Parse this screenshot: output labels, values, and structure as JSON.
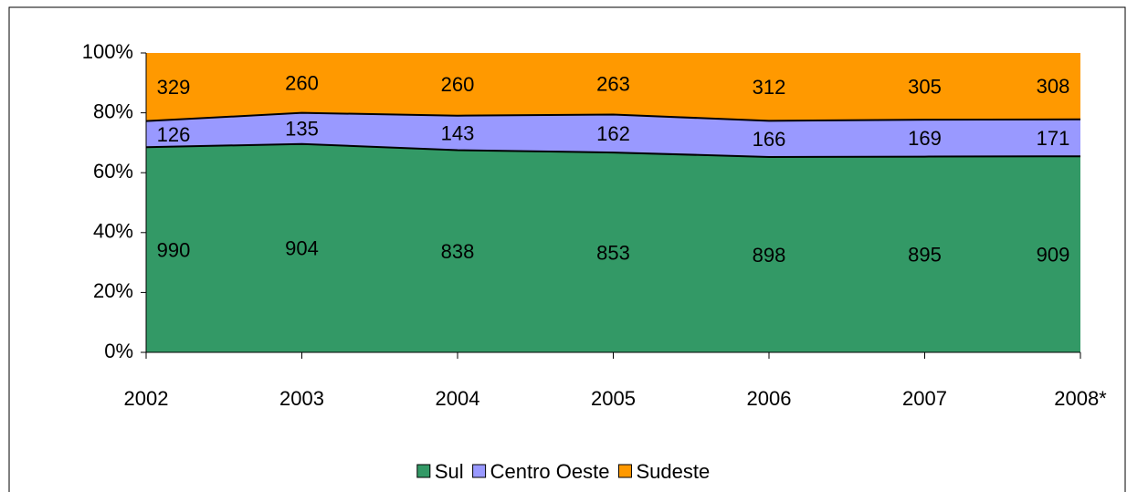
{
  "chart_data": {
    "type": "area",
    "stacked": "percent",
    "categories": [
      "2002",
      "2003",
      "2004",
      "2005",
      "2006",
      "2007",
      "2008*"
    ],
    "series": [
      {
        "name": "Sul",
        "color": "#339966",
        "values": [
          990,
          904,
          838,
          853,
          898,
          895,
          909
        ]
      },
      {
        "name": "Centro Oeste",
        "color": "#9999ff",
        "values": [
          126,
          135,
          143,
          162,
          166,
          169,
          171
        ]
      },
      {
        "name": "Sudeste",
        "color": "#ff9900",
        "values": [
          329,
          260,
          260,
          263,
          312,
          305,
          308
        ]
      }
    ],
    "ylim": [
      0,
      100
    ],
    "yticks": [
      {
        "value": 0,
        "label": "0%"
      },
      {
        "value": 20,
        "label": "20%"
      },
      {
        "value": 40,
        "label": "40%"
      },
      {
        "value": 60,
        "label": "60%"
      },
      {
        "value": 80,
        "label": "80%"
      },
      {
        "value": 100,
        "label": "100%"
      }
    ],
    "legend": "bottom"
  }
}
